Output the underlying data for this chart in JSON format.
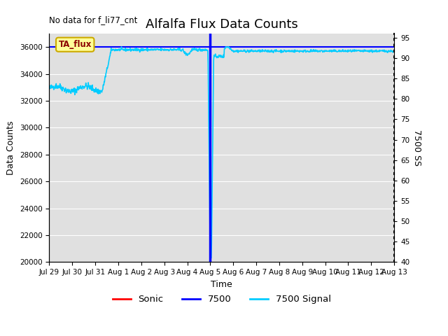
{
  "title": "Alfalfa Flux Data Counts",
  "top_left_text": "No data for f_li77_cnt",
  "xlabel": "Time",
  "ylabel_left": "Data Counts",
  "ylabel_right": "7500 SS",
  "ylim_left": [
    20000,
    37000
  ],
  "ylim_right": [
    40,
    96
  ],
  "yticks_left": [
    20000,
    22000,
    24000,
    26000,
    28000,
    30000,
    32000,
    34000,
    36000
  ],
  "yticks_right": [
    40,
    45,
    50,
    55,
    60,
    65,
    70,
    75,
    80,
    85,
    90,
    95
  ],
  "xtick_labels": [
    "Jul 29",
    "Jul 30",
    "Jul 31",
    "Aug 1",
    "Aug 2",
    "Aug 3",
    "Aug 4",
    "Aug 5",
    "Aug 6",
    "Aug 7",
    "Aug 8",
    "Aug 9",
    "Aug 10",
    "Aug 11",
    "Aug 12",
    "Aug 13"
  ],
  "bg_color": "#e0e0e0",
  "annotation_box_text": "TA_flux",
  "annotation_box_color": "#ffff99",
  "annotation_box_edge": "#ccaa00",
  "series_7500_color": "blue",
  "series_signal_color": "#00ccff",
  "vline_color": "blue",
  "vline_x": 7.0,
  "title_fontsize": 13,
  "axis_label_fontsize": 9,
  "tick_fontsize": 7.5
}
